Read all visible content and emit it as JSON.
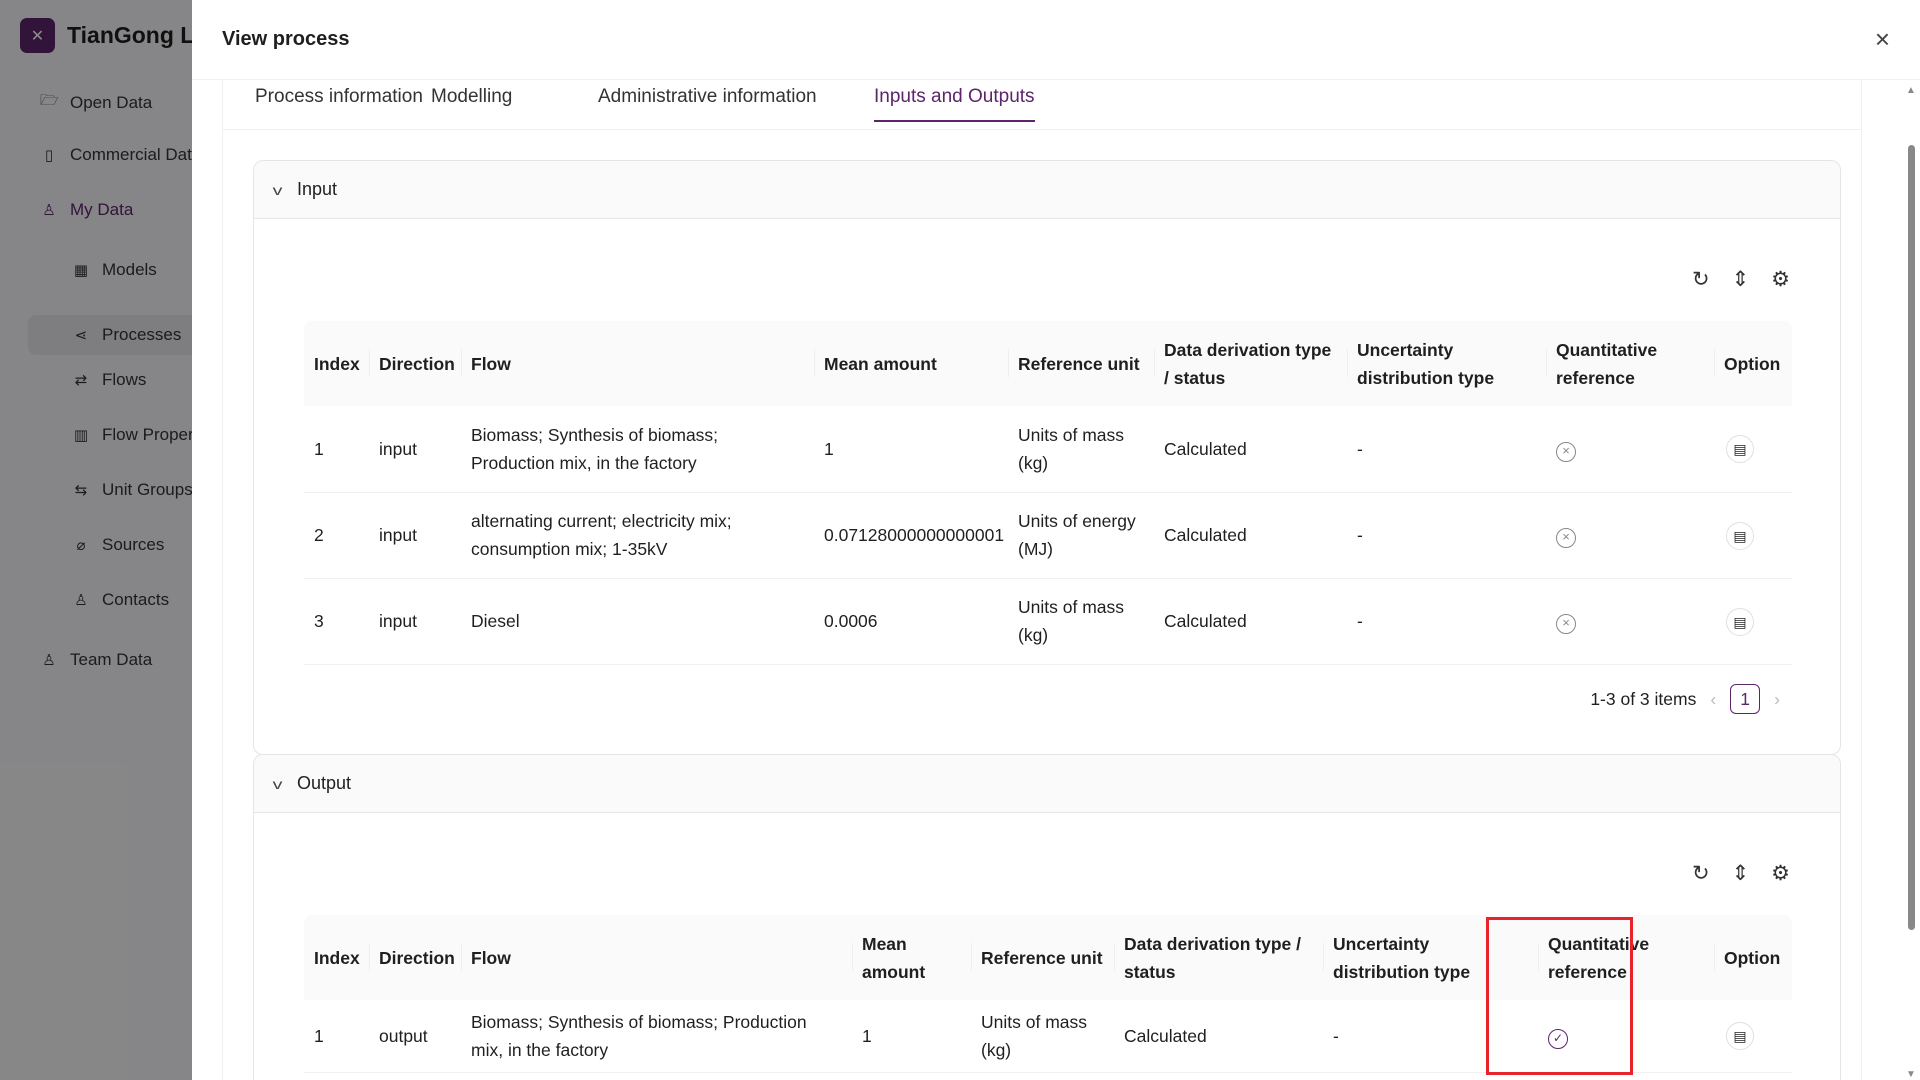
{
  "app": {
    "name": "TianGong LCA"
  },
  "sidebar": {
    "items": [
      {
        "label": "Open Data",
        "icon": "folder-open-icon"
      },
      {
        "label": "Commercial Data",
        "icon": "file-icon"
      },
      {
        "label": "My Data",
        "icon": "user-icon"
      },
      {
        "label": "Models",
        "icon": "grid-icon"
      },
      {
        "label": "Processes",
        "icon": "share-icon"
      },
      {
        "label": "Flows",
        "icon": "swap-icon"
      },
      {
        "label": "Flow Properties",
        "icon": "sliders-icon"
      },
      {
        "label": "Unit Groups",
        "icon": "repeat-icon"
      },
      {
        "label": "Sources",
        "icon": "paperclip-icon"
      },
      {
        "label": "Contacts",
        "icon": "team-icon"
      },
      {
        "label": "Team Data",
        "icon": "team-icon"
      }
    ]
  },
  "drawer": {
    "title": "View process",
    "close": "×"
  },
  "tabs": [
    "Process information",
    "Modelling",
    "Administrative information",
    "Inputs and Outputs"
  ],
  "active_tab": "Inputs and Outputs",
  "colors": {
    "primary": "#5c246a",
    "highlight": "#e8232b"
  },
  "input": {
    "title": "Input",
    "columns": [
      "Index",
      "Direction",
      "Flow",
      "Mean amount",
      "Reference unit",
      "Data derivation type / status",
      "Uncertainty distribution type",
      "Quantitative reference",
      "Option"
    ],
    "rows": [
      {
        "index": "1",
        "direction": "input",
        "flow": "Biomass; Synthesis of biomass; Production mix, in the factory",
        "mean": "1",
        "unit": "Units of mass (kg)",
        "derivation": "Calculated",
        "uncertainty": "-",
        "quant_ref": false
      },
      {
        "index": "2",
        "direction": "input",
        "flow": "alternating current; electricity mix; consumption mix; 1-35kV",
        "mean": "0.07128000000000001",
        "unit": "Units of energy (MJ)",
        "derivation": "Calculated",
        "uncertainty": "-",
        "quant_ref": false
      },
      {
        "index": "3",
        "direction": "input",
        "flow": "Diesel",
        "mean": "0.0006",
        "unit": "Units of mass (kg)",
        "derivation": "Calculated",
        "uncertainty": "-",
        "quant_ref": false
      }
    ],
    "pagination": {
      "summary": "1-3 of 3 items",
      "current": "1"
    }
  },
  "output": {
    "title": "Output",
    "columns": [
      "Index",
      "Direction",
      "Flow",
      "Mean amount",
      "Reference unit",
      "Data derivation type / status",
      "Uncertainty distribution type",
      "Quantitative reference",
      "Option"
    ],
    "rows": [
      {
        "index": "1",
        "direction": "output",
        "flow": "Biomass; Synthesis of biomass; Production mix, in the factory",
        "mean": "1",
        "unit": "Units of mass (kg)",
        "derivation": "Calculated",
        "uncertainty": "-",
        "quant_ref": true
      }
    ]
  }
}
